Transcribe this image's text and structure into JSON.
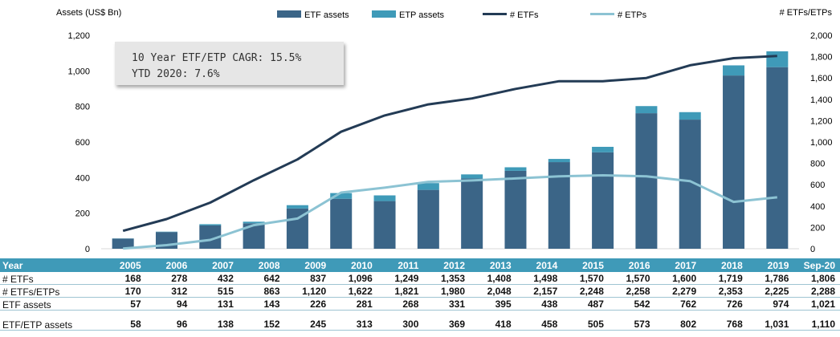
{
  "chart_data": {
    "type": "bar",
    "left_axis_title": "Assets (US$ Bn)",
    "right_axis_title": "# ETFs/ETPs",
    "categories": [
      "2005",
      "2006",
      "2007",
      "2008",
      "2009",
      "2010",
      "2011",
      "2012",
      "2013",
      "2014",
      "2015",
      "2016",
      "2017",
      "2018",
      "2019",
      "Sep-20"
    ],
    "left_ylim": [
      0,
      1200
    ],
    "left_ticks": [
      "0",
      "200",
      "400",
      "600",
      "800",
      "1,000",
      "1,200"
    ],
    "right_ylim": [
      0,
      2000
    ],
    "right_ticks": [
      "0",
      "200",
      "400",
      "600",
      "800",
      "1,000",
      "1,200",
      "1,400",
      "1,600",
      "1,800",
      "2,000"
    ],
    "grid": false,
    "legend_position": "top",
    "series": [
      {
        "name": "ETF assets",
        "type": "stacked-bar",
        "axis": "left",
        "color": "#3b6587",
        "values": [
          57,
          94,
          131,
          143,
          226,
          281,
          268,
          331,
          395,
          438,
          487,
          542,
          762,
          726,
          974,
          1021
        ]
      },
      {
        "name": "ETP assets",
        "type": "stacked-bar",
        "axis": "left",
        "color": "#3f9ab8",
        "values": [
          1,
          2,
          7,
          9,
          19,
          32,
          32,
          38,
          23,
          20,
          18,
          31,
          40,
          42,
          57,
          89
        ]
      },
      {
        "name": "# ETFs",
        "type": "line",
        "axis": "right",
        "color": "#233b55",
        "values": [
          168,
          278,
          432,
          642,
          837,
          1096,
          1249,
          1353,
          1408,
          1498,
          1570,
          1570,
          1600,
          1719,
          1786,
          1806
        ]
      },
      {
        "name": "# ETPs",
        "type": "line",
        "axis": "right",
        "color": "#8cc3d3",
        "values": [
          2,
          34,
          83,
          221,
          283,
          526,
          572,
          627,
          640,
          659,
          678,
          688,
          679,
          634,
          439,
          482
        ]
      }
    ],
    "annotations": [
      "10 Year ETF/ETP CAGR: 15.5%",
      "YTD 2020: 7.6%"
    ]
  },
  "table": {
    "header_label": "Year",
    "columns": [
      "2005",
      "2006",
      "2007",
      "2008",
      "2009",
      "2010",
      "2011",
      "2012",
      "2013",
      "2014",
      "2015",
      "2016",
      "2017",
      "2018",
      "2019",
      "Sep-20"
    ],
    "rows": [
      {
        "label": "# ETFs",
        "values": [
          "168",
          "278",
          "432",
          "642",
          "837",
          "1,096",
          "1,249",
          "1,353",
          "1,408",
          "1,498",
          "1,570",
          "1,570",
          "1,600",
          "1,719",
          "1,786",
          "1,806"
        ]
      },
      {
        "label": "# ETFs/ETPs",
        "values": [
          "170",
          "312",
          "515",
          "863",
          "1,120",
          "1,622",
          "1,821",
          "1,980",
          "2,048",
          "2,157",
          "2,248",
          "2,258",
          "2,279",
          "2,353",
          "2,225",
          "2,288"
        ]
      },
      {
        "label": "ETF assets",
        "values": [
          "57",
          "94",
          "131",
          "143",
          "226",
          "281",
          "268",
          "331",
          "395",
          "438",
          "487",
          "542",
          "762",
          "726",
          "974",
          "1,021"
        ]
      },
      {
        "label": "ETF/ETP assets",
        "values": [
          "58",
          "96",
          "138",
          "152",
          "245",
          "313",
          "300",
          "369",
          "418",
          "458",
          "505",
          "573",
          "802",
          "768",
          "1,031",
          "1,110"
        ]
      }
    ]
  }
}
